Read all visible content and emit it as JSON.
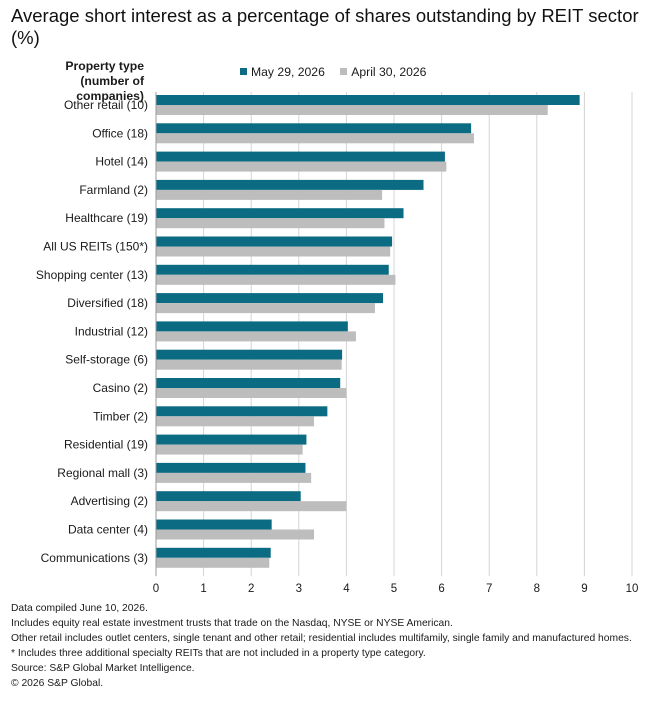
{
  "colors": {
    "series1": "#0b6b82",
    "series2": "#bdbdbd",
    "grid": "#d4d4d4",
    "text": "#1a1a1a"
  },
  "chart_data": {
    "type": "bar",
    "orientation": "horizontal",
    "title": "Average short interest as a percentage of shares outstanding by REIT sector (%)",
    "category_axis_title": "Property type\n(number of companies)",
    "categories": [
      "Other retail (10)",
      "Office (18)",
      "Hotel (14)",
      "Farmland (2)",
      "Healthcare (19)",
      "All US REITs (150*)",
      "Shopping center (13)",
      "Diversified (18)",
      "Industrial (12)",
      "Self-storage (6)",
      "Casino (2)",
      "Timber (2)",
      "Residential (19)",
      "Regional mall (3)",
      "Advertising (2)",
      "Data center (4)",
      "Communications (3)"
    ],
    "series": [
      {
        "name": "May 29, 2026",
        "color": "#0b6b82",
        "values": [
          8.9,
          6.62,
          6.07,
          5.62,
          5.2,
          4.96,
          4.89,
          4.77,
          4.03,
          3.91,
          3.87,
          3.6,
          3.16,
          3.14,
          3.04,
          2.43,
          2.41
        ]
      },
      {
        "name": "April 30, 2026",
        "color": "#bdbdbd",
        "values": [
          8.23,
          6.68,
          6.1,
          4.75,
          4.8,
          4.92,
          5.03,
          4.6,
          4.2,
          3.9,
          4.0,
          3.32,
          3.08,
          3.26,
          4.0,
          3.32,
          2.38
        ]
      }
    ],
    "xlim": [
      0,
      10
    ],
    "xticks": [
      0,
      1,
      2,
      3,
      4,
      5,
      6,
      7,
      8,
      9,
      10
    ],
    "grid": "vertical",
    "legend_position": "top-center"
  },
  "notes": [
    "Data compiled June 10, 2026.",
    "Includes equity real estate investment trusts that trade on the Nasdaq, NYSE or NYSE American.",
    "Other retail includes outlet centers, single tenant and other retail; residential includes multifamily, single family and manufactured homes.",
    "* Includes three additional specialty REITs that are not included in a property type category.",
    "Source: S&P Global Market Intelligence.",
    "© 2026 S&P Global."
  ]
}
